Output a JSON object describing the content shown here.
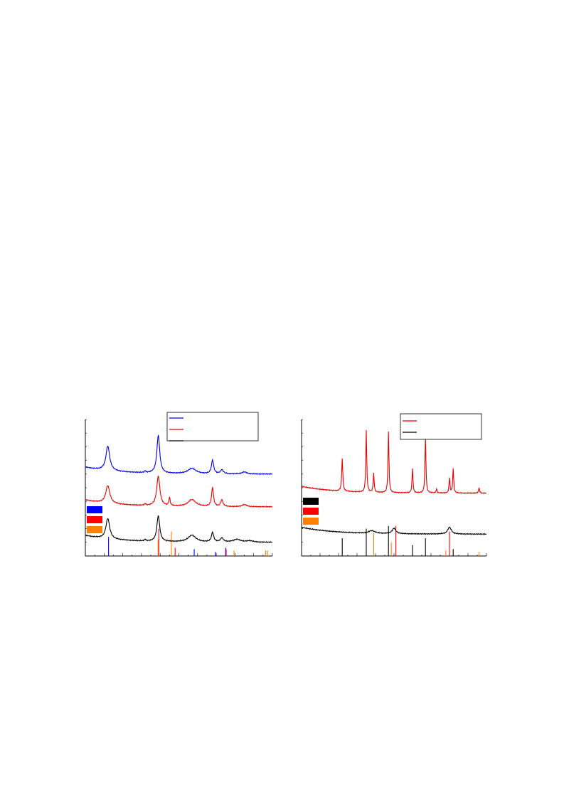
{
  "chart_data": [
    {
      "type": "line",
      "series": [
        {
          "color": "#0000e6",
          "offset": 0.6,
          "peaks": [
            [
              12,
              0.18,
              1.2
            ],
            [
              39,
              0.28,
              0.9
            ],
            [
              32,
              0.012,
              0.4
            ],
            [
              57,
              0.04,
              2.5
            ],
            [
              68,
              0.1,
              0.7
            ],
            [
              73,
              0.03,
              0.9
            ],
            [
              85,
              0.015,
              1.5
            ]
          ]
        },
        {
          "color": "#e60000",
          "offset": 0.36,
          "peaks": [
            [
              12,
              0.13,
              1.3
            ],
            [
              39,
              0.22,
              1.0
            ],
            [
              32,
              0.012,
              0.4
            ],
            [
              45,
              0.06,
              0.4
            ],
            [
              57,
              0.05,
              2.5
            ],
            [
              68,
              0.14,
              0.6
            ],
            [
              73,
              0.05,
              0.7
            ],
            [
              85,
              0.015,
              1.5
            ]
          ]
        },
        {
          "color": "#000000",
          "offset": 0.1,
          "peaks": [
            [
              12,
              0.15,
              1.2
            ],
            [
              39,
              0.19,
              0.9
            ],
            [
              32,
              0.012,
              0.4
            ],
            [
              57,
              0.05,
              2.5
            ],
            [
              68,
              0.07,
              0.7
            ],
            [
              73,
              0.03,
              0.9
            ],
            [
              81,
              0.02,
              2.5
            ],
            [
              88,
              0.01,
              2
            ]
          ]
        }
      ],
      "legend_colors": [
        "#0000e6",
        "#e60000",
        "#000000"
      ],
      "reference_colors": [
        "#0000ff",
        "#ff0000",
        "#ff8000"
      ],
      "reference_lines": [
        {
          "x": 12.4,
          "h": 0.14,
          "color": "#0000ff"
        },
        {
          "x": 38.9,
          "h": 0.12,
          "color": "#ff8000"
        },
        {
          "x": 39.3,
          "h": 0.2,
          "color": "#ff0000"
        },
        {
          "x": 46.0,
          "h": 0.18,
          "color": "#ff8000"
        },
        {
          "x": 48.0,
          "h": 0.06,
          "color": "#ff0000"
        },
        {
          "x": 58.2,
          "h": 0.05,
          "color": "#0000ff"
        },
        {
          "x": 69.6,
          "h": 0.03,
          "color": "#0000ff"
        },
        {
          "x": 75.0,
          "h": 0.06,
          "color": "#0000ff"
        },
        {
          "x": 75.3,
          "h": 0.05,
          "color": "#ff0000"
        },
        {
          "x": 79.5,
          "h": 0.04,
          "color": "#ff8000"
        },
        {
          "x": 96.4,
          "h": 0.04,
          "color": "#ff8000"
        },
        {
          "x": 97.4,
          "h": 0.04,
          "color": "#ff8000"
        }
      ]
    },
    {
      "type": "line",
      "series": [
        {
          "color": "#e60000",
          "offset": 0.46,
          "peaks": [
            [
              22,
              0.24,
              0.35
            ],
            [
              35,
              0.45,
              0.3
            ],
            [
              39,
              0.14,
              0.3
            ],
            [
              47,
              0.45,
              0.3
            ],
            [
              60,
              0.18,
              0.3
            ],
            [
              67,
              0.42,
              0.3
            ],
            [
              73,
              0.03,
              0.3
            ],
            [
              80,
              0.11,
              0.3
            ],
            [
              82,
              0.18,
              0.3
            ],
            [
              96,
              0.04,
              0.3
            ]
          ]
        },
        {
          "color": "#000000",
          "offset": 0.16,
          "peaks": [
            [
              38,
              0.02,
              2
            ],
            [
              50,
              0.04,
              1.2
            ],
            [
              80,
              0.05,
              1.2
            ]
          ]
        }
      ],
      "legend_colors": [
        "#e60000",
        "#000000"
      ],
      "reference_colors": [
        "#000000",
        "#ff0000",
        "#ff8000"
      ],
      "reference_lines": [
        {
          "x": 22.0,
          "h": 0.13,
          "color": "#000000"
        },
        {
          "x": 35.0,
          "h": 0.2,
          "color": "#000000"
        },
        {
          "x": 39.0,
          "h": 0.17,
          "color": "#ff8000"
        },
        {
          "x": 47.0,
          "h": 0.22,
          "color": "#000000"
        },
        {
          "x": 48.5,
          "h": 0.1,
          "color": "#ff8000"
        },
        {
          "x": 51.0,
          "h": 0.22,
          "color": "#ff0000"
        },
        {
          "x": 60.0,
          "h": 0.08,
          "color": "#000000"
        },
        {
          "x": 67.0,
          "h": 0.13,
          "color": "#000000"
        },
        {
          "x": 78.0,
          "h": 0.04,
          "color": "#ff8000"
        },
        {
          "x": 80.0,
          "h": 0.18,
          "color": "#ff0000"
        },
        {
          "x": 82.0,
          "h": 0.05,
          "color": "#000000"
        },
        {
          "x": 96.0,
          "h": 0.03,
          "color": "#ff8000"
        }
      ]
    }
  ]
}
